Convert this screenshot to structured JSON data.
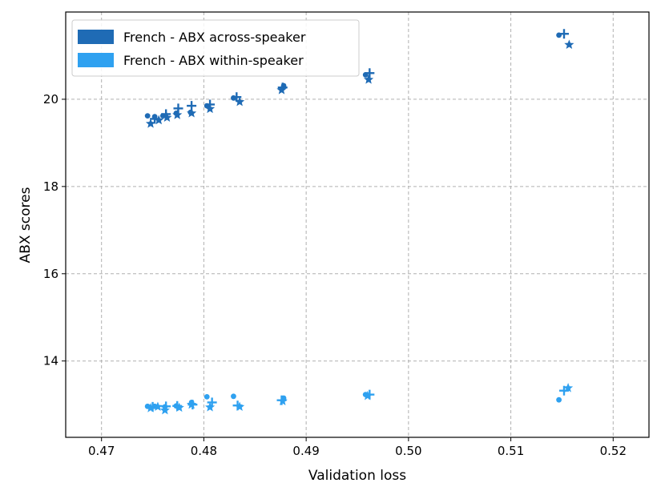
{
  "colors": {
    "across": "#1f6bb5",
    "within": "#2fa1f0",
    "grid": "#b0b0b0"
  },
  "chart_data": {
    "type": "scatter",
    "title": "",
    "xlabel": "Validation loss",
    "ylabel": "ABX scores",
    "xlim": [
      0.4665,
      0.5235
    ],
    "ylim": [
      12.25,
      22.0
    ],
    "xticks": [
      0.47,
      0.48,
      0.49,
      0.5,
      0.51,
      0.52
    ],
    "xtick_labels": [
      "0.47",
      "0.48",
      "0.49",
      "0.50",
      "0.51",
      "0.52"
    ],
    "yticks": [
      14,
      16,
      18,
      20
    ],
    "ytick_labels": [
      "14",
      "16",
      "18",
      "20"
    ],
    "grid": true,
    "grid_style": "dashed",
    "legend_position": "top-left",
    "marker_shapes": [
      "circle",
      "plus",
      "star"
    ],
    "series": [
      {
        "name": "French - ABX across-speaker",
        "color": "#1f6bb5",
        "points": [
          {
            "x": 0.4745,
            "y": 19.62,
            "marker": "circle"
          },
          {
            "x": 0.4752,
            "y": 19.6,
            "marker": "circle"
          },
          {
            "x": 0.476,
            "y": 19.62,
            "marker": "circle"
          },
          {
            "x": 0.4773,
            "y": 19.68,
            "marker": "circle"
          },
          {
            "x": 0.4787,
            "y": 19.7,
            "marker": "circle"
          },
          {
            "x": 0.4803,
            "y": 19.85,
            "marker": "circle"
          },
          {
            "x": 0.4829,
            "y": 20.03,
            "marker": "circle"
          },
          {
            "x": 0.4878,
            "y": 20.31,
            "marker": "circle"
          },
          {
            "x": 0.4958,
            "y": 20.56,
            "marker": "circle"
          },
          {
            "x": 0.5147,
            "y": 21.47,
            "marker": "circle"
          },
          {
            "x": 0.4752,
            "y": 19.55,
            "marker": "plus"
          },
          {
            "x": 0.4763,
            "y": 19.66,
            "marker": "plus"
          },
          {
            "x": 0.4775,
            "y": 19.79,
            "marker": "plus"
          },
          {
            "x": 0.4788,
            "y": 19.85,
            "marker": "plus"
          },
          {
            "x": 0.4806,
            "y": 19.88,
            "marker": "plus"
          },
          {
            "x": 0.4832,
            "y": 20.05,
            "marker": "plus"
          },
          {
            "x": 0.4877,
            "y": 20.27,
            "marker": "plus"
          },
          {
            "x": 0.4962,
            "y": 20.6,
            "marker": "plus"
          },
          {
            "x": 0.5152,
            "y": 21.5,
            "marker": "plus"
          },
          {
            "x": 0.4748,
            "y": 19.44,
            "marker": "star"
          },
          {
            "x": 0.4756,
            "y": 19.52,
            "marker": "star"
          },
          {
            "x": 0.4764,
            "y": 19.58,
            "marker": "star"
          },
          {
            "x": 0.4774,
            "y": 19.64,
            "marker": "star"
          },
          {
            "x": 0.4788,
            "y": 19.68,
            "marker": "star"
          },
          {
            "x": 0.4806,
            "y": 19.78,
            "marker": "star"
          },
          {
            "x": 0.4835,
            "y": 19.94,
            "marker": "star"
          },
          {
            "x": 0.4876,
            "y": 20.21,
            "marker": "star"
          },
          {
            "x": 0.4961,
            "y": 20.45,
            "marker": "star"
          },
          {
            "x": 0.5157,
            "y": 21.25,
            "marker": "star"
          }
        ]
      },
      {
        "name": "French - ABX within-speaker",
        "color": "#2fa1f0",
        "points": [
          {
            "x": 0.4745,
            "y": 12.96,
            "marker": "circle"
          },
          {
            "x": 0.4752,
            "y": 12.96,
            "marker": "circle"
          },
          {
            "x": 0.4762,
            "y": 12.95,
            "marker": "circle"
          },
          {
            "x": 0.4773,
            "y": 12.97,
            "marker": "circle"
          },
          {
            "x": 0.4788,
            "y": 13.05,
            "marker": "circle"
          },
          {
            "x": 0.4803,
            "y": 13.18,
            "marker": "circle"
          },
          {
            "x": 0.4829,
            "y": 13.19,
            "marker": "circle"
          },
          {
            "x": 0.4878,
            "y": 13.15,
            "marker": "circle"
          },
          {
            "x": 0.4958,
            "y": 13.23,
            "marker": "circle"
          },
          {
            "x": 0.5147,
            "y": 13.11,
            "marker": "circle"
          },
          {
            "x": 0.475,
            "y": 12.95,
            "marker": "plus"
          },
          {
            "x": 0.4763,
            "y": 12.96,
            "marker": "plus"
          },
          {
            "x": 0.4774,
            "y": 12.97,
            "marker": "plus"
          },
          {
            "x": 0.4789,
            "y": 13.0,
            "marker": "plus"
          },
          {
            "x": 0.4808,
            "y": 13.05,
            "marker": "plus"
          },
          {
            "x": 0.4833,
            "y": 12.98,
            "marker": "plus"
          },
          {
            "x": 0.4876,
            "y": 13.1,
            "marker": "plus"
          },
          {
            "x": 0.4962,
            "y": 13.23,
            "marker": "plus"
          },
          {
            "x": 0.5152,
            "y": 13.32,
            "marker": "plus"
          },
          {
            "x": 0.4748,
            "y": 12.92,
            "marker": "star"
          },
          {
            "x": 0.4755,
            "y": 12.95,
            "marker": "star"
          },
          {
            "x": 0.4762,
            "y": 12.87,
            "marker": "star"
          },
          {
            "x": 0.4776,
            "y": 12.93,
            "marker": "star"
          },
          {
            "x": 0.4788,
            "y": 13.0,
            "marker": "star"
          },
          {
            "x": 0.4806,
            "y": 12.94,
            "marker": "star"
          },
          {
            "x": 0.4835,
            "y": 12.95,
            "marker": "star"
          },
          {
            "x": 0.4877,
            "y": 13.08,
            "marker": "star"
          },
          {
            "x": 0.496,
            "y": 13.2,
            "marker": "star"
          },
          {
            "x": 0.5156,
            "y": 13.38,
            "marker": "star"
          }
        ]
      }
    ]
  }
}
